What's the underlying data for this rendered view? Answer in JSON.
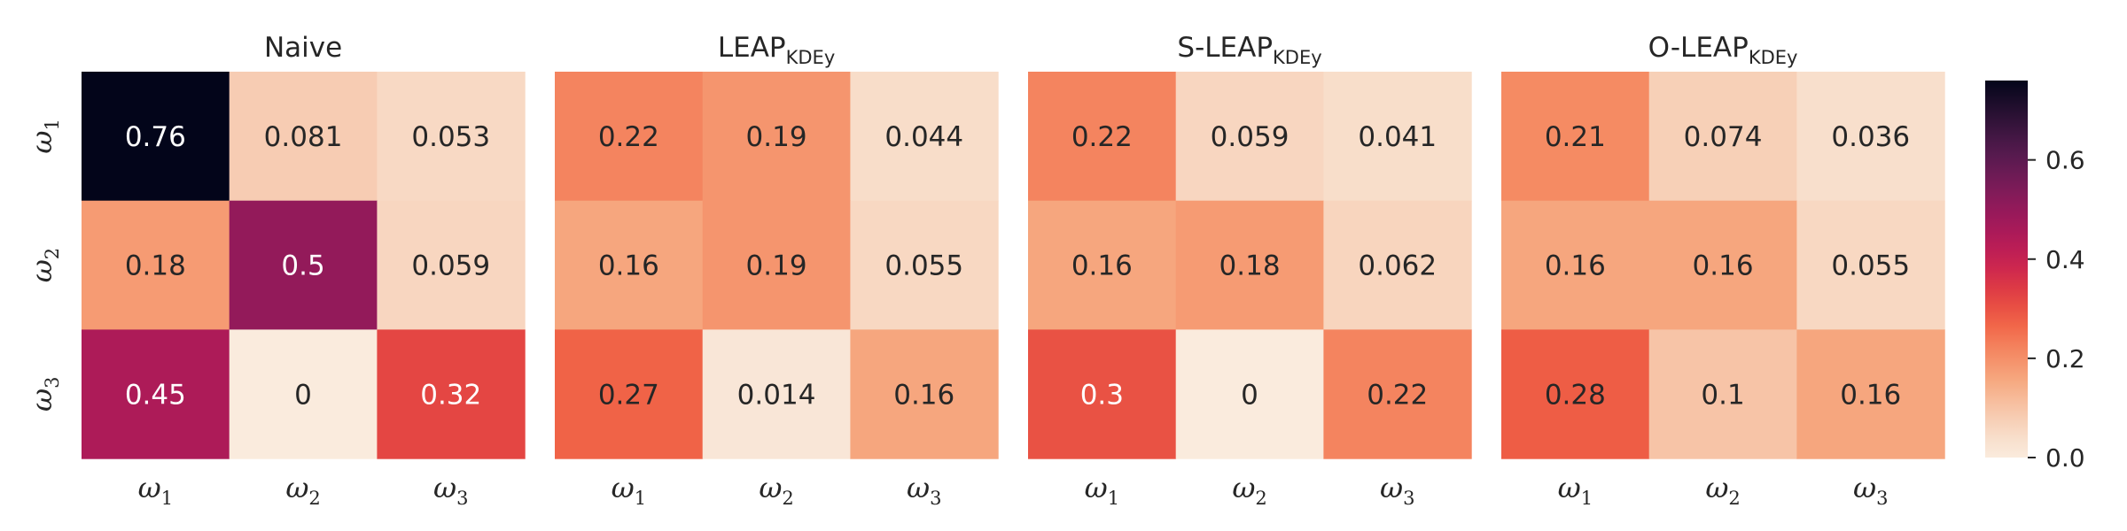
{
  "chart_data": [
    {
      "type": "heatmap",
      "title": "Naive",
      "title_sub": "",
      "rows": [
        "ω1",
        "ω2",
        "ω3"
      ],
      "cols": [
        "ω1",
        "ω2",
        "ω3"
      ],
      "values": [
        [
          0.76,
          0.081,
          0.053
        ],
        [
          0.18,
          0.5,
          0.059
        ],
        [
          0.45,
          0,
          0.32
        ]
      ],
      "labels": [
        [
          "0.76",
          "0.081",
          "0.053"
        ],
        [
          "0.18",
          "0.5",
          "0.059"
        ],
        [
          "0.45",
          "0",
          "0.32"
        ]
      ]
    },
    {
      "type": "heatmap",
      "title": "LEAP",
      "title_sub": "KDEy",
      "rows": [
        "ω1",
        "ω2",
        "ω3"
      ],
      "cols": [
        "ω1",
        "ω2",
        "ω3"
      ],
      "values": [
        [
          0.22,
          0.19,
          0.044
        ],
        [
          0.16,
          0.19,
          0.055
        ],
        [
          0.27,
          0.014,
          0.16
        ]
      ],
      "labels": [
        [
          "0.22",
          "0.19",
          "0.044"
        ],
        [
          "0.16",
          "0.19",
          "0.055"
        ],
        [
          "0.27",
          "0.014",
          "0.16"
        ]
      ]
    },
    {
      "type": "heatmap",
      "title": "S-LEAP",
      "title_sub": "KDEy",
      "rows": [
        "ω1",
        "ω2",
        "ω3"
      ],
      "cols": [
        "ω1",
        "ω2",
        "ω3"
      ],
      "values": [
        [
          0.22,
          0.059,
          0.041
        ],
        [
          0.16,
          0.18,
          0.062
        ],
        [
          0.3,
          0,
          0.22
        ]
      ],
      "labels": [
        [
          "0.22",
          "0.059",
          "0.041"
        ],
        [
          "0.16",
          "0.18",
          "0.062"
        ],
        [
          "0.3",
          "0",
          "0.22"
        ]
      ]
    },
    {
      "type": "heatmap",
      "title": "O-LEAP",
      "title_sub": "KDEy",
      "rows": [
        "ω1",
        "ω2",
        "ω3"
      ],
      "cols": [
        "ω1",
        "ω2",
        "ω3"
      ],
      "values": [
        [
          0.21,
          0.074,
          0.036
        ],
        [
          0.16,
          0.16,
          0.055
        ],
        [
          0.28,
          0.1,
          0.16
        ]
      ],
      "labels": [
        [
          "0.21",
          "0.074",
          "0.036"
        ],
        [
          "0.16",
          "0.16",
          "0.055"
        ],
        [
          "0.28",
          "0.1",
          "0.16"
        ]
      ]
    }
  ],
  "colorbar": {
    "range": [
      0,
      0.76
    ],
    "ticks": [
      0.0,
      0.2,
      0.4,
      0.6
    ],
    "tick_labels": [
      "0.0",
      "0.2",
      "0.4",
      "0.6"
    ],
    "colormap": "rocket_r"
  }
}
